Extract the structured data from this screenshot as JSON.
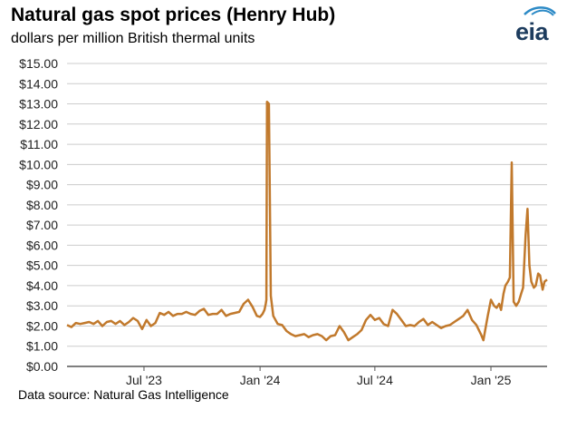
{
  "chart_data": {
    "type": "line",
    "title": "Natural gas spot prices (Henry Hub)",
    "subtitle": "dollars per million British thermal units",
    "source": "Data source: Natural Gas Intelligence",
    "logo_text": "eia",
    "series": [
      {
        "name": "",
        "color": "#c1792c",
        "points": [
          [
            "2023-03-01",
            2.05
          ],
          [
            "2023-03-08",
            1.95
          ],
          [
            "2023-03-15",
            2.15
          ],
          [
            "2023-03-22",
            2.1
          ],
          [
            "2023-03-29",
            2.15
          ],
          [
            "2023-04-05",
            2.2
          ],
          [
            "2023-04-12",
            2.1
          ],
          [
            "2023-04-19",
            2.25
          ],
          [
            "2023-04-26",
            2.0
          ],
          [
            "2023-05-03",
            2.2
          ],
          [
            "2023-05-10",
            2.25
          ],
          [
            "2023-05-17",
            2.1
          ],
          [
            "2023-05-24",
            2.25
          ],
          [
            "2023-05-31",
            2.05
          ],
          [
            "2023-06-07",
            2.2
          ],
          [
            "2023-06-14",
            2.4
          ],
          [
            "2023-06-21",
            2.25
          ],
          [
            "2023-06-28",
            1.85
          ],
          [
            "2023-07-05",
            2.3
          ],
          [
            "2023-07-12",
            2.0
          ],
          [
            "2023-07-19",
            2.15
          ],
          [
            "2023-07-26",
            2.65
          ],
          [
            "2023-08-02",
            2.55
          ],
          [
            "2023-08-09",
            2.7
          ],
          [
            "2023-08-16",
            2.5
          ],
          [
            "2023-08-23",
            2.6
          ],
          [
            "2023-08-30",
            2.6
          ],
          [
            "2023-09-06",
            2.7
          ],
          [
            "2023-09-13",
            2.6
          ],
          [
            "2023-09-20",
            2.55
          ],
          [
            "2023-09-27",
            2.75
          ],
          [
            "2023-10-04",
            2.85
          ],
          [
            "2023-10-11",
            2.55
          ],
          [
            "2023-10-18",
            2.6
          ],
          [
            "2023-10-25",
            2.6
          ],
          [
            "2023-11-01",
            2.8
          ],
          [
            "2023-11-08",
            2.5
          ],
          [
            "2023-11-15",
            2.6
          ],
          [
            "2023-11-22",
            2.65
          ],
          [
            "2023-11-29",
            2.7
          ],
          [
            "2023-12-06",
            3.1
          ],
          [
            "2023-12-13",
            3.3
          ],
          [
            "2023-12-20",
            2.95
          ],
          [
            "2023-12-27",
            2.5
          ],
          [
            "2024-01-01",
            2.45
          ],
          [
            "2024-01-05",
            2.6
          ],
          [
            "2024-01-08",
            2.8
          ],
          [
            "2024-01-10",
            3.1
          ],
          [
            "2024-01-11",
            3.3
          ],
          [
            "2024-01-12",
            13.1
          ],
          [
            "2024-01-15",
            13.0
          ],
          [
            "2024-01-18",
            3.5
          ],
          [
            "2024-01-22",
            2.5
          ],
          [
            "2024-01-29",
            2.1
          ],
          [
            "2024-02-05",
            2.05
          ],
          [
            "2024-02-12",
            1.75
          ],
          [
            "2024-02-19",
            1.6
          ],
          [
            "2024-02-26",
            1.5
          ],
          [
            "2024-03-04",
            1.55
          ],
          [
            "2024-03-11",
            1.6
          ],
          [
            "2024-03-18",
            1.45
          ],
          [
            "2024-03-25",
            1.55
          ],
          [
            "2024-04-01",
            1.6
          ],
          [
            "2024-04-08",
            1.5
          ],
          [
            "2024-04-15",
            1.3
          ],
          [
            "2024-04-22",
            1.5
          ],
          [
            "2024-04-29",
            1.55
          ],
          [
            "2024-05-06",
            2.0
          ],
          [
            "2024-05-13",
            1.7
          ],
          [
            "2024-05-20",
            1.3
          ],
          [
            "2024-05-27",
            1.45
          ],
          [
            "2024-06-03",
            1.6
          ],
          [
            "2024-06-10",
            1.8
          ],
          [
            "2024-06-17",
            2.3
          ],
          [
            "2024-06-24",
            2.55
          ],
          [
            "2024-07-01",
            2.3
          ],
          [
            "2024-07-08",
            2.4
          ],
          [
            "2024-07-15",
            2.1
          ],
          [
            "2024-07-22",
            2.0
          ],
          [
            "2024-07-29",
            2.8
          ],
          [
            "2024-08-05",
            2.6
          ],
          [
            "2024-08-12",
            2.3
          ],
          [
            "2024-08-19",
            2.0
          ],
          [
            "2024-08-26",
            2.05
          ],
          [
            "2024-09-02",
            2.0
          ],
          [
            "2024-09-09",
            2.2
          ],
          [
            "2024-09-16",
            2.35
          ],
          [
            "2024-09-23",
            2.05
          ],
          [
            "2024-09-30",
            2.2
          ],
          [
            "2024-10-07",
            2.05
          ],
          [
            "2024-10-14",
            1.9
          ],
          [
            "2024-10-21",
            2.0
          ],
          [
            "2024-10-28",
            2.05
          ],
          [
            "2024-11-04",
            2.2
          ],
          [
            "2024-11-11",
            2.35
          ],
          [
            "2024-11-18",
            2.5
          ],
          [
            "2024-11-25",
            2.8
          ],
          [
            "2024-12-02",
            2.3
          ],
          [
            "2024-12-09",
            2.05
          ],
          [
            "2024-12-16",
            1.6
          ],
          [
            "2024-12-20",
            1.3
          ],
          [
            "2024-12-23",
            1.8
          ],
          [
            "2024-12-27",
            2.5
          ],
          [
            "2025-01-01",
            3.3
          ],
          [
            "2025-01-06",
            3.0
          ],
          [
            "2025-01-10",
            2.9
          ],
          [
            "2025-01-14",
            3.1
          ],
          [
            "2025-01-17",
            2.8
          ],
          [
            "2025-01-21",
            3.6
          ],
          [
            "2025-01-24",
            4.0
          ],
          [
            "2025-01-28",
            4.2
          ],
          [
            "2025-01-31",
            4.4
          ],
          [
            "2025-02-03",
            10.1
          ],
          [
            "2025-02-06",
            3.2
          ],
          [
            "2025-02-10",
            3.0
          ],
          [
            "2025-02-14",
            3.2
          ],
          [
            "2025-02-18",
            3.6
          ],
          [
            "2025-02-21",
            3.9
          ],
          [
            "2025-02-25",
            6.5
          ],
          [
            "2025-02-28",
            7.8
          ],
          [
            "2025-03-03",
            5.0
          ],
          [
            "2025-03-06",
            4.2
          ],
          [
            "2025-03-10",
            3.9
          ],
          [
            "2025-03-13",
            4.0
          ],
          [
            "2025-03-17",
            4.6
          ],
          [
            "2025-03-20",
            4.5
          ],
          [
            "2025-03-24",
            3.8
          ],
          [
            "2025-03-27",
            4.2
          ],
          [
            "2025-03-31",
            4.3
          ]
        ]
      }
    ],
    "x_ticks": [
      {
        "date": "2023-07-01",
        "label": "Jul '23"
      },
      {
        "date": "2024-01-01",
        "label": "Jan '24"
      },
      {
        "date": "2024-07-01",
        "label": "Jul '24"
      },
      {
        "date": "2025-01-01",
        "label": "Jan '25"
      }
    ],
    "y_ticks": [
      0,
      1,
      2,
      3,
      4,
      5,
      6,
      7,
      8,
      9,
      10,
      11,
      12,
      13,
      14,
      15
    ],
    "y_tick_labels": [
      "$0.00",
      "$1.00",
      "$2.00",
      "$3.00",
      "$4.00",
      "$5.00",
      "$6.00",
      "$7.00",
      "$8.00",
      "$9.00",
      "$10.00",
      "$11.00",
      "$12.00",
      "$13.00",
      "$14.00",
      "$15.00"
    ],
    "xlim": [
      "2023-03-01",
      "2025-03-31"
    ],
    "ylim": [
      0,
      15
    ],
    "grid": true
  }
}
